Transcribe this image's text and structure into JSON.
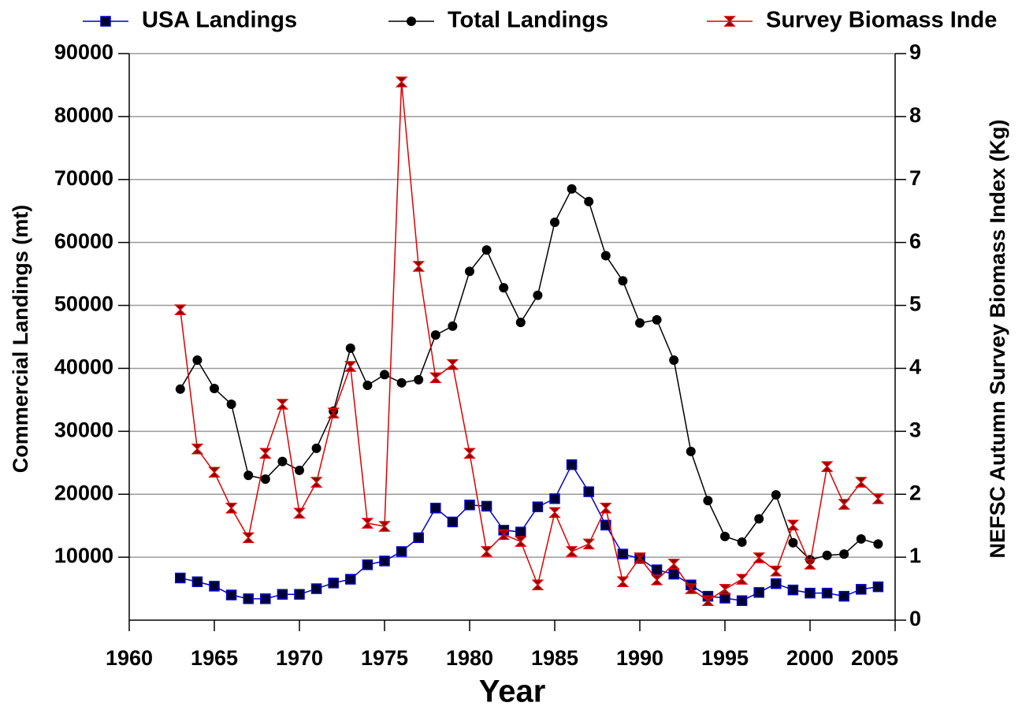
{
  "chart_data": {
    "type": "line",
    "xlabel": "Year",
    "ylabel": "Commercial Landings (mt)",
    "y2label": "NEFSC Autumn Survey Biomass Index (Kg)",
    "x": [
      1963,
      1964,
      1965,
      1966,
      1967,
      1968,
      1969,
      1970,
      1971,
      1972,
      1973,
      1974,
      1975,
      1976,
      1977,
      1978,
      1979,
      1980,
      1981,
      1982,
      1983,
      1984,
      1985,
      1986,
      1987,
      1988,
      1989,
      1990,
      1991,
      1992,
      1993,
      1994,
      1995,
      1996,
      1997,
      1998,
      1999,
      2000,
      2001,
      2002,
      2003,
      2004
    ],
    "series": [
      {
        "name": "USA Landings",
        "color": "#0000cc",
        "marker": "square",
        "values": [
          6700,
          6100,
          5400,
          4000,
          3400,
          3400,
          4100,
          4100,
          5000,
          5900,
          6500,
          8800,
          9400,
          10900,
          13100,
          17800,
          15600,
          18300,
          18100,
          14300,
          14000,
          18000,
          19300,
          24700,
          20400,
          15100,
          10500,
          9800,
          8000,
          7300,
          5600,
          3800,
          3500,
          3100,
          4400,
          5800,
          4800,
          4300,
          4300,
          3800,
          4900,
          5300
        ]
      },
      {
        "name": "Total Landings",
        "color": "#000000",
        "marker": "circle",
        "values": [
          36700,
          41300,
          36800,
          34300,
          23000,
          22400,
          25200,
          23800,
          27300,
          33200,
          43200,
          37300,
          39000,
          37700,
          38200,
          45300,
          46700,
          55400,
          58800,
          52800,
          47300,
          51600,
          63200,
          68500,
          66500,
          57900,
          53900,
          47200,
          47700,
          41300,
          26800,
          19000,
          13300,
          12400,
          16100,
          19900,
          12300,
          9600,
          10300,
          10500,
          12900,
          12100
        ]
      },
      {
        "name": "Survey Biomass Inde",
        "color": "#dd0000",
        "marker": "bowtie",
        "axis": "y2",
        "values": [
          4.93,
          2.72,
          2.35,
          1.78,
          1.31,
          2.65,
          3.43,
          1.7,
          2.19,
          3.29,
          4.03,
          1.54,
          1.49,
          8.55,
          5.62,
          3.85,
          4.06,
          2.65,
          1.09,
          1.36,
          1.25,
          0.56,
          1.71,
          1.09,
          1.21,
          1.78,
          0.61,
          0.99,
          0.64,
          0.89,
          0.5,
          0.31,
          0.49,
          0.65,
          0.99,
          0.78,
          1.51,
          0.89,
          2.44,
          1.84,
          2.19,
          1.93
        ]
      }
    ],
    "xlim": [
      1960,
      2005
    ],
    "xticks": [
      1960,
      1965,
      1970,
      1975,
      1980,
      1985,
      1990,
      1995,
      2000,
      2005
    ],
    "ylim": [
      0,
      90000
    ],
    "yticks": [
      10000,
      20000,
      30000,
      40000,
      50000,
      60000,
      70000,
      80000,
      90000
    ],
    "y2lim": [
      0,
      9
    ],
    "y2ticks": [
      0,
      1,
      2,
      3,
      4,
      5,
      6,
      7,
      8,
      9
    ],
    "grid": true
  }
}
